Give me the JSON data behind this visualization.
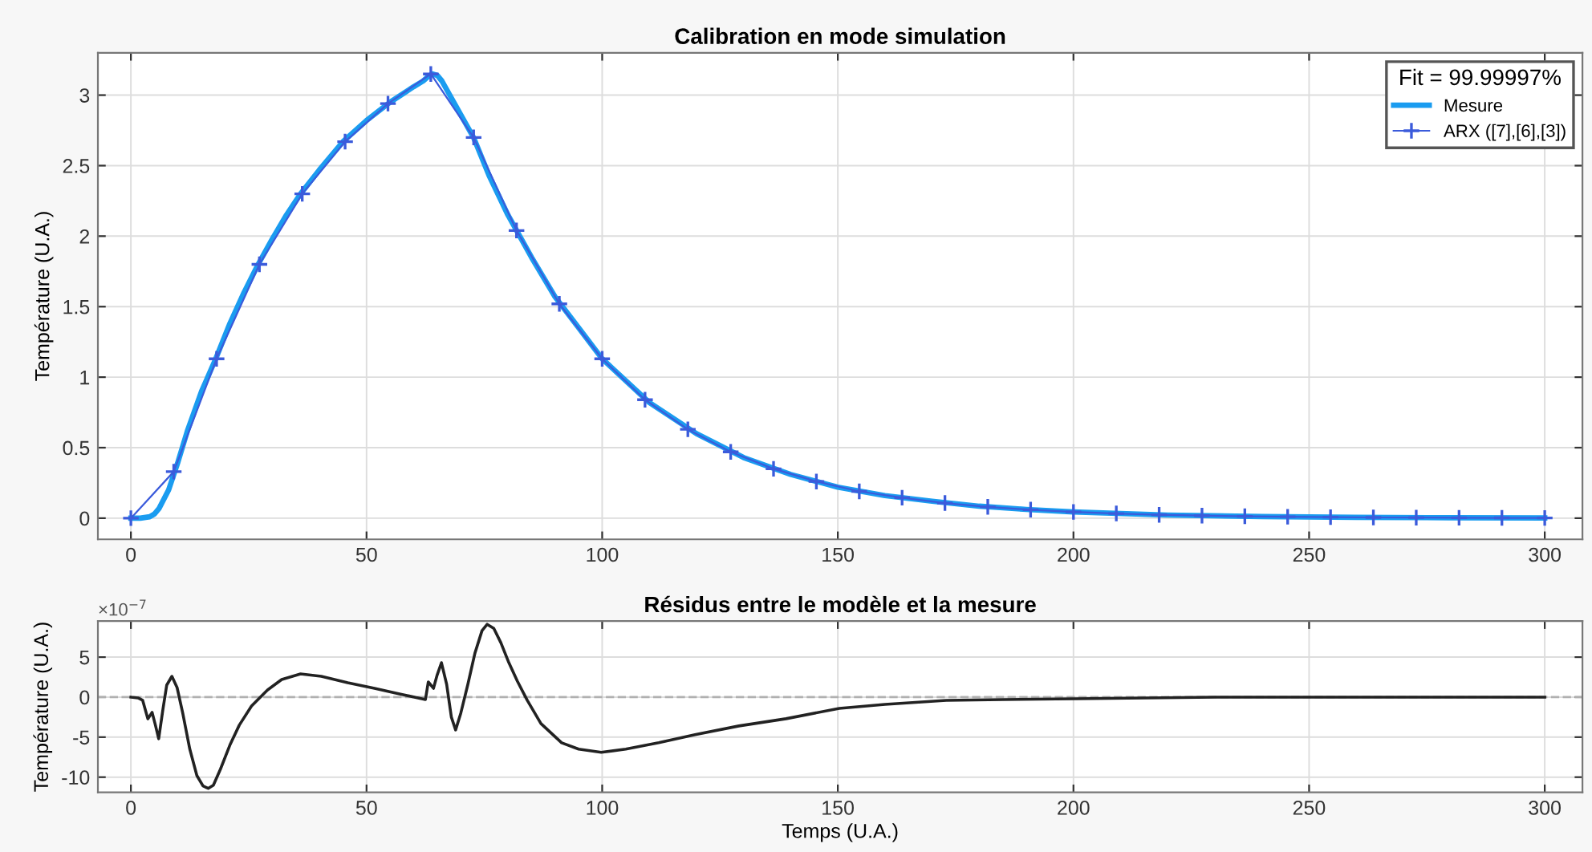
{
  "chart_data": [
    {
      "type": "line",
      "title": "Calibration en mode simulation",
      "ylabel": "Température (U.A.)",
      "xlim": [
        -7,
        308
      ],
      "xticks": [
        0,
        50,
        100,
        150,
        200,
        250,
        300
      ],
      "ylim": [
        -0.15,
        3.3
      ],
      "yticks": [
        0,
        0.5,
        1,
        1.5,
        2,
        2.5,
        3
      ],
      "grid": true,
      "legend": "top right",
      "legend_title": "Fit = 99.99997%",
      "series": [
        {
          "name": "Mesure",
          "color": "#1a9cf0",
          "marker": "none",
          "x": [
            0,
            2,
            4,
            5,
            6,
            8,
            10,
            12,
            15,
            18,
            21,
            24,
            27,
            30,
            33,
            36,
            40,
            45,
            50,
            55,
            60,
            62,
            63,
            64,
            65,
            66,
            68,
            70,
            72.7,
            76,
            80,
            85,
            90,
            95,
            100,
            110,
            120,
            130,
            140,
            150,
            160,
            170,
            180,
            190,
            200,
            220,
            240,
            260,
            280,
            300
          ],
          "values": [
            0,
            0,
            0.01,
            0.03,
            0.07,
            0.2,
            0.4,
            0.62,
            0.9,
            1.13,
            1.38,
            1.6,
            1.8,
            1.98,
            2.15,
            2.3,
            2.47,
            2.67,
            2.82,
            2.95,
            3.06,
            3.1,
            3.13,
            3.15,
            3.14,
            3.1,
            2.98,
            2.86,
            2.7,
            2.43,
            2.15,
            1.85,
            1.57,
            1.35,
            1.13,
            0.82,
            0.6,
            0.43,
            0.31,
            0.22,
            0.16,
            0.12,
            0.085,
            0.062,
            0.044,
            0.022,
            0.011,
            0.006,
            0.003,
            0.0015
          ]
        },
        {
          "name": "ARX ([7],[6],[3])",
          "color": "#3b5bdb",
          "marker": "cross",
          "x": [
            0,
            9.09,
            18.18,
            27.27,
            36.36,
            45.45,
            54.55,
            63.64,
            72.73,
            81.82,
            90.91,
            100,
            109.09,
            118.18,
            127.27,
            136.36,
            145.45,
            154.55,
            163.64,
            172.73,
            181.82,
            190.91,
            200,
            209.09,
            218.18,
            227.27,
            236.36,
            245.45,
            254.55,
            263.64,
            272.73,
            281.82,
            290.91,
            300
          ],
          "values": [
            0,
            0.33,
            1.13,
            1.8,
            2.3,
            2.67,
            2.94,
            3.15,
            2.7,
            2.04,
            1.52,
            1.13,
            0.84,
            0.63,
            0.47,
            0.35,
            0.26,
            0.19,
            0.145,
            0.107,
            0.08,
            0.06,
            0.044,
            0.033,
            0.024,
            0.018,
            0.013,
            0.01,
            0.007,
            0.005,
            0.004,
            0.003,
            0.002,
            0.0015
          ]
        }
      ]
    },
    {
      "type": "line",
      "title": "Résidus entre le modèle et la mesure",
      "xlabel": "Temps (U.A.)",
      "ylabel": "Température (U.A.)",
      "annotations": [
        "×10$^{−7}$"
      ],
      "xlim": [
        -7,
        308
      ],
      "xticks": [
        0,
        50,
        100,
        150,
        200,
        250,
        300
      ],
      "ylim": [
        -11.9,
        9.5
      ],
      "yticks": [
        -10,
        -5,
        0,
        5
      ],
      "grid": true,
      "legend": false,
      "ref_lines": [
        {
          "axis": "y",
          "value": 0,
          "color": "#b0b0b0",
          "line_style": "dashed"
        }
      ],
      "series": [
        {
          "color": "#222222",
          "marker": "none",
          "x": [
            0,
            1.5,
            2.5,
            3.6,
            4.5,
            5.2,
            5.9,
            6.8,
            7.6,
            8.7,
            9.8,
            11,
            12.5,
            14,
            15.3,
            16.4,
            17.5,
            19,
            21,
            23,
            25.6,
            29,
            32,
            36,
            40.4,
            46,
            51.7,
            57,
            62.5,
            63.1,
            64.2,
            65,
            65.9,
            67,
            68,
            68.9,
            70,
            71.5,
            73,
            74.5,
            75.6,
            77,
            78.5,
            80.2,
            82,
            84.1,
            87,
            91.4,
            95,
            99.8,
            105,
            112,
            119.7,
            129,
            139,
            150.3,
            160,
            173,
            185,
            200.3,
            230,
            300
          ],
          "values": [
            0,
            -0.1,
            -0.4,
            -2.7,
            -1.9,
            -3.5,
            -5.2,
            -1.5,
            1.5,
            2.6,
            1.2,
            -2,
            -6.5,
            -9.8,
            -11.1,
            -11.4,
            -11,
            -9,
            -6,
            -3.5,
            -1.1,
            0.9,
            2.2,
            2.9,
            2.6,
            1.8,
            1.1,
            0.4,
            -0.3,
            1.9,
            1.1,
            2.8,
            4.3,
            1.6,
            -2.5,
            -4.1,
            -2,
            1.6,
            5.5,
            8.3,
            9.1,
            8.6,
            6.8,
            4.3,
            2,
            -0.4,
            -3.3,
            -5.7,
            -6.5,
            -6.9,
            -6.5,
            -5.7,
            -4.7,
            -3.6,
            -2.7,
            -1.4,
            -0.9,
            -0.4,
            -0.3,
            -0.2,
            0,
            0
          ]
        }
      ]
    }
  ]
}
